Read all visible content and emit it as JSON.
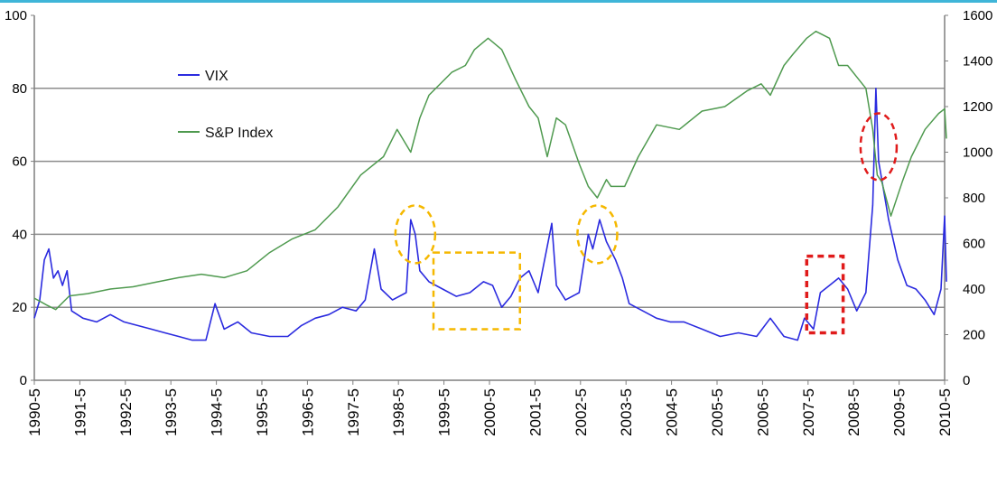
{
  "chart_data": {
    "type": "line",
    "x_categories": [
      "1990-5",
      "1991-5",
      "1992-5",
      "1993-5",
      "1994-5",
      "1995-5",
      "1996-5",
      "1997-5",
      "1998-5",
      "1999-5",
      "2000-5",
      "2001-5",
      "2002-5",
      "2003-5",
      "2004-5",
      "2005-5",
      "2006-5",
      "2007-5",
      "2008-5",
      "2009-5",
      "2010-5"
    ],
    "y_left": {
      "range": [
        0,
        100
      ],
      "ticks": [
        "0",
        "20",
        "40",
        "60",
        "80",
        "100"
      ]
    },
    "y_right": {
      "range": [
        0,
        1600
      ],
      "ticks": [
        "0",
        "200",
        "400",
        "600",
        "800",
        "1000",
        "1200",
        "1400",
        "1600"
      ]
    },
    "grid": "horizontal gridlines at 20, 40, 60, 80",
    "legend": {
      "placement": "upper-left",
      "items": [
        "VIX",
        "S&P Index"
      ]
    },
    "series": [
      {
        "name": "VIX",
        "axis": "left",
        "color": "#2b2bdf",
        "points": [
          [
            1990.33,
            17
          ],
          [
            1990.45,
            22
          ],
          [
            1990.55,
            33
          ],
          [
            1990.65,
            36
          ],
          [
            1990.75,
            28
          ],
          [
            1990.85,
            30
          ],
          [
            1990.95,
            26
          ],
          [
            1991.05,
            30
          ],
          [
            1991.15,
            19
          ],
          [
            1991.4,
            17
          ],
          [
            1991.7,
            16
          ],
          [
            1992.0,
            18
          ],
          [
            1992.3,
            16
          ],
          [
            1992.6,
            15
          ],
          [
            1992.9,
            14
          ],
          [
            1993.2,
            13
          ],
          [
            1993.5,
            12
          ],
          [
            1993.8,
            11
          ],
          [
            1994.1,
            11
          ],
          [
            1994.3,
            21
          ],
          [
            1994.5,
            14
          ],
          [
            1994.8,
            16
          ],
          [
            1995.1,
            13
          ],
          [
            1995.5,
            12
          ],
          [
            1995.9,
            12
          ],
          [
            1996.2,
            15
          ],
          [
            1996.5,
            17
          ],
          [
            1996.8,
            18
          ],
          [
            1997.1,
            20
          ],
          [
            1997.4,
            19
          ],
          [
            1997.6,
            22
          ],
          [
            1997.8,
            36
          ],
          [
            1997.95,
            25
          ],
          [
            1998.2,
            22
          ],
          [
            1998.5,
            24
          ],
          [
            1998.6,
            44
          ],
          [
            1998.7,
            40
          ],
          [
            1998.8,
            30
          ],
          [
            1999.0,
            27
          ],
          [
            1999.3,
            25
          ],
          [
            1999.6,
            23
          ],
          [
            1999.9,
            24
          ],
          [
            2000.2,
            27
          ],
          [
            2000.4,
            26
          ],
          [
            2000.6,
            20
          ],
          [
            2000.8,
            23
          ],
          [
            2001.0,
            28
          ],
          [
            2001.2,
            30
          ],
          [
            2001.4,
            24
          ],
          [
            2001.7,
            43
          ],
          [
            2001.8,
            26
          ],
          [
            2002.0,
            22
          ],
          [
            2002.3,
            24
          ],
          [
            2002.5,
            40
          ],
          [
            2002.6,
            36
          ],
          [
            2002.75,
            44
          ],
          [
            2002.9,
            38
          ],
          [
            2003.1,
            33
          ],
          [
            2003.25,
            28
          ],
          [
            2003.4,
            21
          ],
          [
            2003.7,
            19
          ],
          [
            2004.0,
            17
          ],
          [
            2004.3,
            16
          ],
          [
            2004.6,
            16
          ],
          [
            2005.0,
            14
          ],
          [
            2005.4,
            12
          ],
          [
            2005.8,
            13
          ],
          [
            2006.2,
            12
          ],
          [
            2006.5,
            17
          ],
          [
            2006.8,
            12
          ],
          [
            2007.1,
            11
          ],
          [
            2007.25,
            17
          ],
          [
            2007.45,
            14
          ],
          [
            2007.6,
            24
          ],
          [
            2007.8,
            26
          ],
          [
            2008.0,
            28
          ],
          [
            2008.2,
            25
          ],
          [
            2008.4,
            19
          ],
          [
            2008.6,
            24
          ],
          [
            2008.75,
            48
          ],
          [
            2008.82,
            80
          ],
          [
            2008.88,
            60
          ],
          [
            2008.95,
            55
          ],
          [
            2009.1,
            44
          ],
          [
            2009.3,
            33
          ],
          [
            2009.5,
            26
          ],
          [
            2009.7,
            25
          ],
          [
            2009.9,
            22
          ],
          [
            2010.1,
            18
          ],
          [
            2010.25,
            25
          ],
          [
            2010.33,
            45
          ],
          [
            2010.37,
            27
          ]
        ]
      },
      {
        "name": "S&P Index",
        "axis": "right",
        "color": "#4f9a4f",
        "points": [
          [
            1990.33,
            360
          ],
          [
            1990.6,
            330
          ],
          [
            1990.8,
            310
          ],
          [
            1991.1,
            370
          ],
          [
            1991.5,
            380
          ],
          [
            1992.0,
            400
          ],
          [
            1992.5,
            410
          ],
          [
            1993.0,
            430
          ],
          [
            1993.5,
            450
          ],
          [
            1994.0,
            465
          ],
          [
            1994.5,
            450
          ],
          [
            1995.0,
            480
          ],
          [
            1995.5,
            560
          ],
          [
            1996.0,
            620
          ],
          [
            1996.5,
            660
          ],
          [
            1997.0,
            760
          ],
          [
            1997.5,
            900
          ],
          [
            1998.0,
            980
          ],
          [
            1998.3,
            1100
          ],
          [
            1998.6,
            1000
          ],
          [
            1998.8,
            1150
          ],
          [
            1999.0,
            1250
          ],
          [
            1999.5,
            1350
          ],
          [
            1999.8,
            1380
          ],
          [
            2000.0,
            1450
          ],
          [
            2000.3,
            1500
          ],
          [
            2000.6,
            1450
          ],
          [
            2000.9,
            1320
          ],
          [
            2001.2,
            1200
          ],
          [
            2001.4,
            1150
          ],
          [
            2001.6,
            980
          ],
          [
            2001.8,
            1150
          ],
          [
            2002.0,
            1120
          ],
          [
            2002.3,
            950
          ],
          [
            2002.5,
            850
          ],
          [
            2002.7,
            800
          ],
          [
            2002.9,
            880
          ],
          [
            2003.0,
            850
          ],
          [
            2003.3,
            850
          ],
          [
            2003.6,
            980
          ],
          [
            2004.0,
            1120
          ],
          [
            2004.5,
            1100
          ],
          [
            2005.0,
            1180
          ],
          [
            2005.5,
            1200
          ],
          [
            2006.0,
            1270
          ],
          [
            2006.3,
            1300
          ],
          [
            2006.5,
            1250
          ],
          [
            2006.8,
            1380
          ],
          [
            2007.0,
            1430
          ],
          [
            2007.3,
            1500
          ],
          [
            2007.5,
            1530
          ],
          [
            2007.8,
            1500
          ],
          [
            2008.0,
            1380
          ],
          [
            2008.2,
            1380
          ],
          [
            2008.4,
            1330
          ],
          [
            2008.6,
            1280
          ],
          [
            2008.75,
            1100
          ],
          [
            2008.85,
            900
          ],
          [
            2008.95,
            870
          ],
          [
            2009.15,
            720
          ],
          [
            2009.4,
            870
          ],
          [
            2009.6,
            980
          ],
          [
            2009.9,
            1100
          ],
          [
            2010.2,
            1170
          ],
          [
            2010.33,
            1190
          ],
          [
            2010.37,
            1060
          ]
        ]
      }
    ],
    "annotations": [
      {
        "shape": "dashed-circle",
        "color": "#f5b800",
        "x": 1998.7,
        "y": 40
      },
      {
        "shape": "dashed-rectangle",
        "color": "#f5b800",
        "x_range": [
          1999.1,
          2001.0
        ],
        "y_range": [
          14,
          35
        ]
      },
      {
        "shape": "dashed-circle",
        "color": "#f5b800",
        "x": 2002.7,
        "y": 40
      },
      {
        "shape": "dashed-rectangle",
        "color": "#e01b1b",
        "x_range": [
          2007.3,
          2008.1
        ],
        "y_range": [
          13,
          34
        ]
      },
      {
        "shape": "dashed-circle",
        "color": "#e01b1b",
        "x": 2008.88,
        "y": 64
      }
    ]
  }
}
